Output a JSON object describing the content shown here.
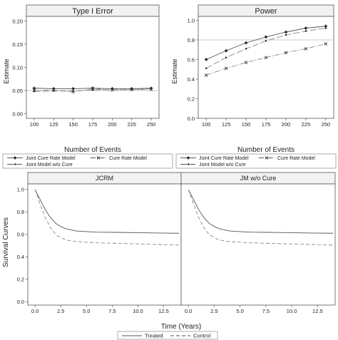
{
  "chart_data": [
    {
      "type": "line",
      "title": "Type I Error",
      "xlabel": "Number of Events",
      "ylabel": "Estimate",
      "x": [
        100,
        125,
        150,
        175,
        200,
        225,
        250
      ],
      "xticks": [
        "100",
        "125",
        "150",
        "175",
        "200",
        "225",
        "250"
      ],
      "xlim": [
        90,
        260
      ],
      "ylim": [
        -0.01,
        0.21
      ],
      "yticks": [
        0.0,
        0.05,
        0.1,
        0.15,
        0.2
      ],
      "ytick_labels": [
        "0.00",
        "0.05",
        "0.10",
        "0.15",
        "0.20"
      ],
      "reference_line": 0.05,
      "series": [
        {
          "name": "Joint Cure Rate Model",
          "style": "solid",
          "marker": "star",
          "values": [
            0.055,
            0.054,
            0.054,
            0.055,
            0.054,
            0.054,
            0.055
          ]
        },
        {
          "name": "Cure Rate Model",
          "style": "dashdot",
          "marker": "x",
          "values": [
            0.05,
            0.051,
            0.047,
            0.054,
            0.051,
            0.052,
            0.052
          ]
        },
        {
          "name": "Joint Model w/o Cure",
          "style": "longdash",
          "marker": "dot",
          "values": [
            0.048,
            0.049,
            0.049,
            0.051,
            0.052,
            0.052,
            0.054
          ]
        }
      ],
      "legend": {
        "position": "bottom",
        "entries": [
          "Joint Cure Rate Model",
          "Cure Rate Model",
          "Joint Model w/o Cure"
        ]
      }
    },
    {
      "type": "line",
      "title": "Power",
      "xlabel": "Number of Events",
      "ylabel": "Estimate",
      "x": [
        100,
        125,
        150,
        175,
        200,
        225,
        250
      ],
      "xticks": [
        "100",
        "125",
        "150",
        "175",
        "200",
        "225",
        "250"
      ],
      "xlim": [
        90,
        260
      ],
      "ylim": [
        0.0,
        1.04
      ],
      "yticks": [
        0.0,
        0.2,
        0.4,
        0.6,
        0.8,
        1.0
      ],
      "ytick_labels": [
        "0.0",
        "0.2",
        "0.4",
        "0.6",
        "0.8",
        "1.0"
      ],
      "reference_line": 0.8,
      "series": [
        {
          "name": "Joint Cure Rate Model",
          "style": "solid",
          "marker": "star",
          "values": [
            0.6,
            0.69,
            0.77,
            0.83,
            0.88,
            0.92,
            0.94
          ]
        },
        {
          "name": "Cure Rate Model",
          "style": "dashdot",
          "marker": "x",
          "values": [
            0.44,
            0.51,
            0.57,
            0.62,
            0.67,
            0.71,
            0.76
          ]
        },
        {
          "name": "Joint Model w/o Cure",
          "style": "longdash",
          "marker": "dot",
          "values": [
            0.51,
            0.62,
            0.71,
            0.79,
            0.85,
            0.89,
            0.92
          ]
        }
      ],
      "legend": {
        "position": "bottom",
        "entries": [
          "Joint Cure Rate Model",
          "Cure Rate Model",
          "Joint Model w/o Cure"
        ]
      }
    },
    {
      "type": "line",
      "title": "JCRM",
      "xlabel": "Time (Years)",
      "ylabel": "Survival Curves",
      "xlim": [
        -0.7,
        14.2
      ],
      "xticks": [
        0.0,
        2.5,
        5.0,
        7.5,
        10.0,
        12.5
      ],
      "xtick_labels": [
        "0.0",
        "2.5",
        "5.0",
        "7.5",
        "10.0",
        "12.5"
      ],
      "ylim": [
        -0.03,
        1.05
      ],
      "yticks": [
        0.0,
        0.2,
        0.4,
        0.6,
        0.8,
        1.0
      ],
      "ytick_labels": [
        "0.0",
        "0.2",
        "0.4",
        "0.6",
        "0.8",
        "1.0"
      ],
      "series": [
        {
          "name": "Treated",
          "style": "solid",
          "x": [
            0,
            0.5,
            1,
            1.5,
            2,
            2.5,
            3,
            4,
            5,
            6,
            8,
            10,
            12,
            14
          ],
          "values": [
            1.0,
            0.91,
            0.82,
            0.75,
            0.7,
            0.67,
            0.65,
            0.63,
            0.625,
            0.62,
            0.618,
            0.615,
            0.612,
            0.61
          ]
        },
        {
          "name": "Control",
          "style": "dashed",
          "x": [
            0,
            0.5,
            1,
            1.5,
            2,
            2.5,
            3,
            4,
            5,
            6,
            8,
            10,
            12,
            14
          ],
          "values": [
            1.0,
            0.87,
            0.75,
            0.66,
            0.6,
            0.57,
            0.55,
            0.535,
            0.53,
            0.525,
            0.52,
            0.515,
            0.51,
            0.505
          ]
        }
      ]
    },
    {
      "type": "line",
      "title": "JM w/o Cure",
      "xlabel": "Time (Years)",
      "ylabel": "Survival Curves",
      "xlim": [
        -0.7,
        14.2
      ],
      "xticks": [
        0.0,
        2.5,
        5.0,
        7.5,
        10.0,
        12.5
      ],
      "xtick_labels": [
        "0.0",
        "2.5",
        "5.0",
        "7.5",
        "10.0",
        "12.5"
      ],
      "ylim": [
        -0.03,
        1.05
      ],
      "yticks": [
        0.0,
        0.2,
        0.4,
        0.6,
        0.8,
        1.0
      ],
      "ytick_labels": [
        "0.0",
        "0.2",
        "0.4",
        "0.6",
        "0.8",
        "1.0"
      ],
      "series": [
        {
          "name": "Treated",
          "style": "solid",
          "x": [
            0,
            0.5,
            1,
            1.5,
            2,
            2.5,
            3,
            4,
            5,
            6,
            8,
            10,
            12,
            14
          ],
          "values": [
            1.0,
            0.91,
            0.82,
            0.75,
            0.7,
            0.67,
            0.65,
            0.63,
            0.625,
            0.62,
            0.618,
            0.615,
            0.612,
            0.61
          ]
        },
        {
          "name": "Control",
          "style": "dashed",
          "x": [
            0,
            0.5,
            1,
            1.5,
            2,
            2.5,
            3,
            4,
            5,
            6,
            8,
            10,
            12,
            14
          ],
          "values": [
            1.0,
            0.87,
            0.75,
            0.66,
            0.6,
            0.57,
            0.55,
            0.535,
            0.53,
            0.525,
            0.52,
            0.515,
            0.51,
            0.505
          ]
        }
      ],
      "legend": {
        "position": "bottom",
        "entries": [
          "Treated",
          "Control"
        ]
      }
    }
  ]
}
